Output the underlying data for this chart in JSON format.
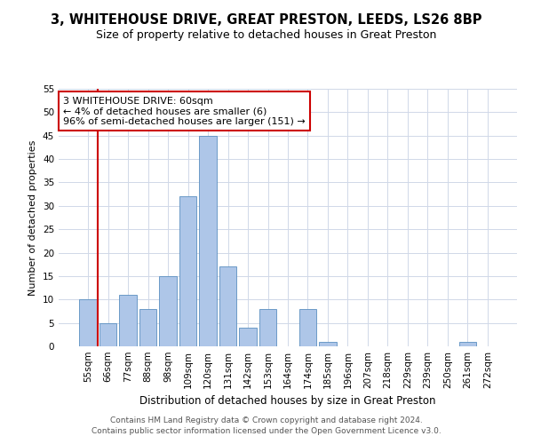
{
  "title1": "3, WHITEHOUSE DRIVE, GREAT PRESTON, LEEDS, LS26 8BP",
  "title2": "Size of property relative to detached houses in Great Preston",
  "xlabel": "Distribution of detached houses by size in Great Preston",
  "ylabel": "Number of detached properties",
  "categories": [
    "55sqm",
    "66sqm",
    "77sqm",
    "88sqm",
    "98sqm",
    "109sqm",
    "120sqm",
    "131sqm",
    "142sqm",
    "153sqm",
    "164sqm",
    "174sqm",
    "185sqm",
    "196sqm",
    "207sqm",
    "218sqm",
    "229sqm",
    "239sqm",
    "250sqm",
    "261sqm",
    "272sqm"
  ],
  "values": [
    10,
    5,
    11,
    8,
    15,
    32,
    45,
    17,
    4,
    8,
    0,
    8,
    1,
    0,
    0,
    0,
    0,
    0,
    0,
    1,
    0
  ],
  "bar_color": "#aec6e8",
  "bar_edge_color": "#5a8fc0",
  "annotation_text": "3 WHITEHOUSE DRIVE: 60sqm\n← 4% of detached houses are smaller (6)\n96% of semi-detached houses are larger (151) →",
  "annotation_box_color": "#ffffff",
  "annotation_box_edge": "#cc0000",
  "vline_color": "#cc0000",
  "ylim": [
    0,
    55
  ],
  "yticks": [
    0,
    5,
    10,
    15,
    20,
    25,
    30,
    35,
    40,
    45,
    50,
    55
  ],
  "footer1": "Contains HM Land Registry data © Crown copyright and database right 2024.",
  "footer2": "Contains public sector information licensed under the Open Government Licence v3.0.",
  "bg_color": "#ffffff",
  "grid_color": "#d0d8e8",
  "title1_fontsize": 10.5,
  "title2_fontsize": 9,
  "xlabel_fontsize": 8.5,
  "ylabel_fontsize": 8,
  "tick_fontsize": 7.5,
  "annotation_fontsize": 8
}
